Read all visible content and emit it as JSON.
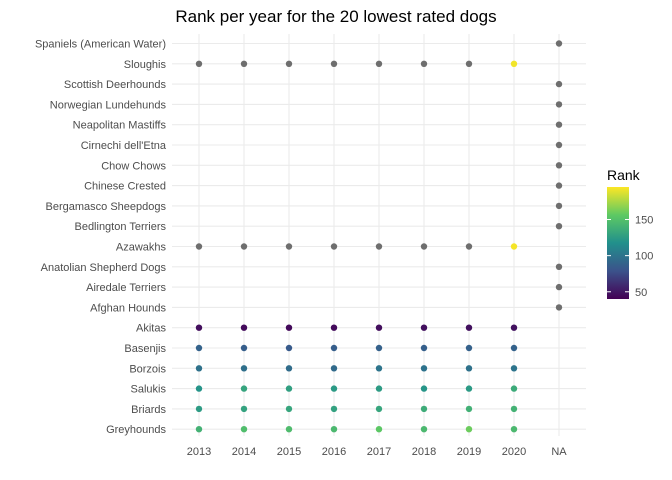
{
  "chart_data": {
    "type": "scatter",
    "title": "Rank per year for the 20 lowest rated dogs",
    "xlabel": "",
    "ylabel": "",
    "x_categories": [
      "2013",
      "2014",
      "2015",
      "2016",
      "2017",
      "2018",
      "2019",
      "2020",
      "NA"
    ],
    "y_categories": [
      "Spaniels (American Water)",
      "Sloughis",
      "Scottish Deerhounds",
      "Norwegian Lundehunds",
      "Neapolitan Mastiffs",
      "Cirnechi dell'Etna",
      "Chow Chows",
      "Chinese Crested",
      "Bergamasco Sheepdogs",
      "Bedlington Terriers",
      "Azawakhs",
      "Anatolian Shepherd Dogs",
      "Airedale Terriers",
      "Afghan Hounds",
      "Akitas",
      "Basenjis",
      "Borzois",
      "Salukis",
      "Briards",
      "Greyhounds"
    ],
    "grid": true,
    "legend": {
      "title": "Rank",
      "placement": "right",
      "ticks": [
        "50",
        "100",
        "150"
      ],
      "range": [
        40,
        195
      ],
      "colormap": "viridis",
      "na_color": "#6e6e6e"
    },
    "points": [
      {
        "dog": "Spaniels (American Water)",
        "year": "NA",
        "rank": null
      },
      {
        "dog": "Sloughis",
        "year": "2013",
        "rank": null
      },
      {
        "dog": "Sloughis",
        "year": "2014",
        "rank": null
      },
      {
        "dog": "Sloughis",
        "year": "2015",
        "rank": null
      },
      {
        "dog": "Sloughis",
        "year": "2016",
        "rank": null
      },
      {
        "dog": "Sloughis",
        "year": "2017",
        "rank": null
      },
      {
        "dog": "Sloughis",
        "year": "2018",
        "rank": null
      },
      {
        "dog": "Sloughis",
        "year": "2019",
        "rank": null
      },
      {
        "dog": "Sloughis",
        "year": "2020",
        "rank": 192
      },
      {
        "dog": "Scottish Deerhounds",
        "year": "NA",
        "rank": null
      },
      {
        "dog": "Norwegian Lundehunds",
        "year": "NA",
        "rank": null
      },
      {
        "dog": "Neapolitan Mastiffs",
        "year": "NA",
        "rank": null
      },
      {
        "dog": "Cirnechi dell'Etna",
        "year": "NA",
        "rank": null
      },
      {
        "dog": "Chow Chows",
        "year": "NA",
        "rank": null
      },
      {
        "dog": "Chinese Crested",
        "year": "NA",
        "rank": null
      },
      {
        "dog": "Bergamasco Sheepdogs",
        "year": "NA",
        "rank": null
      },
      {
        "dog": "Bedlington Terriers",
        "year": "NA",
        "rank": null
      },
      {
        "dog": "Azawakhs",
        "year": "2013",
        "rank": null
      },
      {
        "dog": "Azawakhs",
        "year": "2014",
        "rank": null
      },
      {
        "dog": "Azawakhs",
        "year": "2015",
        "rank": null
      },
      {
        "dog": "Azawakhs",
        "year": "2016",
        "rank": null
      },
      {
        "dog": "Azawakhs",
        "year": "2017",
        "rank": null
      },
      {
        "dog": "Azawakhs",
        "year": "2018",
        "rank": null
      },
      {
        "dog": "Azawakhs",
        "year": "2019",
        "rank": null
      },
      {
        "dog": "Azawakhs",
        "year": "2020",
        "rank": 193
      },
      {
        "dog": "Anatolian Shepherd Dogs",
        "year": "NA",
        "rank": null
      },
      {
        "dog": "Airedale Terriers",
        "year": "NA",
        "rank": null
      },
      {
        "dog": "Afghan Hounds",
        "year": "NA",
        "rank": null
      },
      {
        "dog": "Akitas",
        "year": "2013",
        "rank": 46
      },
      {
        "dog": "Akitas",
        "year": "2014",
        "rank": 45
      },
      {
        "dog": "Akitas",
        "year": "2015",
        "rank": 44
      },
      {
        "dog": "Akitas",
        "year": "2016",
        "rank": 45
      },
      {
        "dog": "Akitas",
        "year": "2017",
        "rank": 46
      },
      {
        "dog": "Akitas",
        "year": "2018",
        "rank": 47
      },
      {
        "dog": "Akitas",
        "year": "2019",
        "rank": 47
      },
      {
        "dog": "Akitas",
        "year": "2020",
        "rank": 48
      },
      {
        "dog": "Basenjis",
        "year": "2013",
        "rank": 89
      },
      {
        "dog": "Basenjis",
        "year": "2014",
        "rank": 86
      },
      {
        "dog": "Basenjis",
        "year": "2015",
        "rank": 84
      },
      {
        "dog": "Basenjis",
        "year": "2016",
        "rank": 86
      },
      {
        "dog": "Basenjis",
        "year": "2017",
        "rank": 88
      },
      {
        "dog": "Basenjis",
        "year": "2018",
        "rank": 87
      },
      {
        "dog": "Basenjis",
        "year": "2019",
        "rank": 88
      },
      {
        "dog": "Basenjis",
        "year": "2020",
        "rank": 89
      },
      {
        "dog": "Borzois",
        "year": "2013",
        "rank": 98
      },
      {
        "dog": "Borzois",
        "year": "2014",
        "rank": 97
      },
      {
        "dog": "Borzois",
        "year": "2015",
        "rank": 95
      },
      {
        "dog": "Borzois",
        "year": "2016",
        "rank": 94
      },
      {
        "dog": "Borzois",
        "year": "2017",
        "rank": 100
      },
      {
        "dog": "Borzois",
        "year": "2018",
        "rank": 99
      },
      {
        "dog": "Borzois",
        "year": "2019",
        "rank": 98
      },
      {
        "dog": "Borzois",
        "year": "2020",
        "rank": 100
      },
      {
        "dog": "Salukis",
        "year": "2013",
        "rank": 120
      },
      {
        "dog": "Salukis",
        "year": "2014",
        "rank": 131
      },
      {
        "dog": "Salukis",
        "year": "2015",
        "rank": 128
      },
      {
        "dog": "Salukis",
        "year": "2016",
        "rank": 124
      },
      {
        "dog": "Salukis",
        "year": "2017",
        "rank": 125
      },
      {
        "dog": "Salukis",
        "year": "2018",
        "rank": 121
      },
      {
        "dog": "Salukis",
        "year": "2019",
        "rank": 124
      },
      {
        "dog": "Salukis",
        "year": "2020",
        "rank": 135
      },
      {
        "dog": "Briards",
        "year": "2013",
        "rank": 125
      },
      {
        "dog": "Briards",
        "year": "2014",
        "rank": 130
      },
      {
        "dog": "Briards",
        "year": "2015",
        "rank": 132
      },
      {
        "dog": "Briards",
        "year": "2016",
        "rank": 129
      },
      {
        "dog": "Briards",
        "year": "2017",
        "rank": 132
      },
      {
        "dog": "Briards",
        "year": "2018",
        "rank": 136
      },
      {
        "dog": "Briards",
        "year": "2019",
        "rank": 139
      },
      {
        "dog": "Briards",
        "year": "2020",
        "rank": 140
      },
      {
        "dog": "Greyhounds",
        "year": "2013",
        "rank": 140
      },
      {
        "dog": "Greyhounds",
        "year": "2014",
        "rank": 148
      },
      {
        "dog": "Greyhounds",
        "year": "2015",
        "rank": 147
      },
      {
        "dog": "Greyhounds",
        "year": "2016",
        "rank": 145
      },
      {
        "dog": "Greyhounds",
        "year": "2017",
        "rank": 155
      },
      {
        "dog": "Greyhounds",
        "year": "2018",
        "rank": 145
      },
      {
        "dog": "Greyhounds",
        "year": "2019",
        "rank": 160
      },
      {
        "dog": "Greyhounds",
        "year": "2020",
        "rank": 145
      }
    ]
  }
}
